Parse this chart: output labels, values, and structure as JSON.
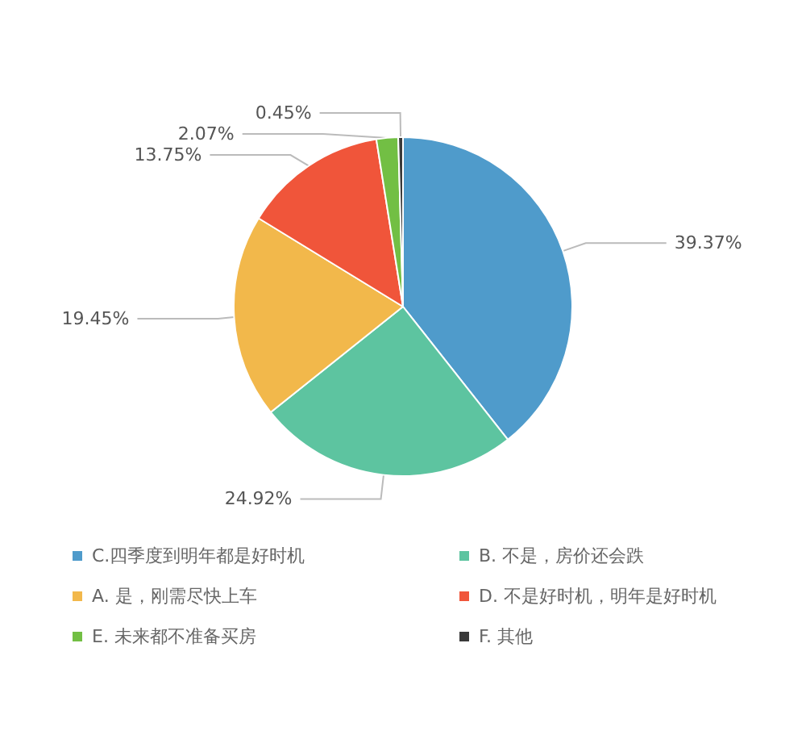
{
  "chart_data": {
    "type": "pie",
    "categories": [
      "C.四季度到明年都是好时机",
      "B. 不是，房价还会跌",
      "A. 是，刚需尽快上车",
      "D. 不是好时机，明年是好时机",
      "E. 未来都不准备买房",
      "F. 其他"
    ],
    "values": [
      39.37,
      24.92,
      19.45,
      13.75,
      2.07,
      0.45
    ],
    "value_labels": [
      "39.37%",
      "24.92%",
      "19.45%",
      "13.75%",
      "2.07%",
      "0.45%"
    ],
    "colors": [
      "#4f9bcb",
      "#5dc4a0",
      "#f2b84b",
      "#f0553a",
      "#72bf44",
      "#3a3a3a"
    ],
    "legend": "bottom"
  }
}
